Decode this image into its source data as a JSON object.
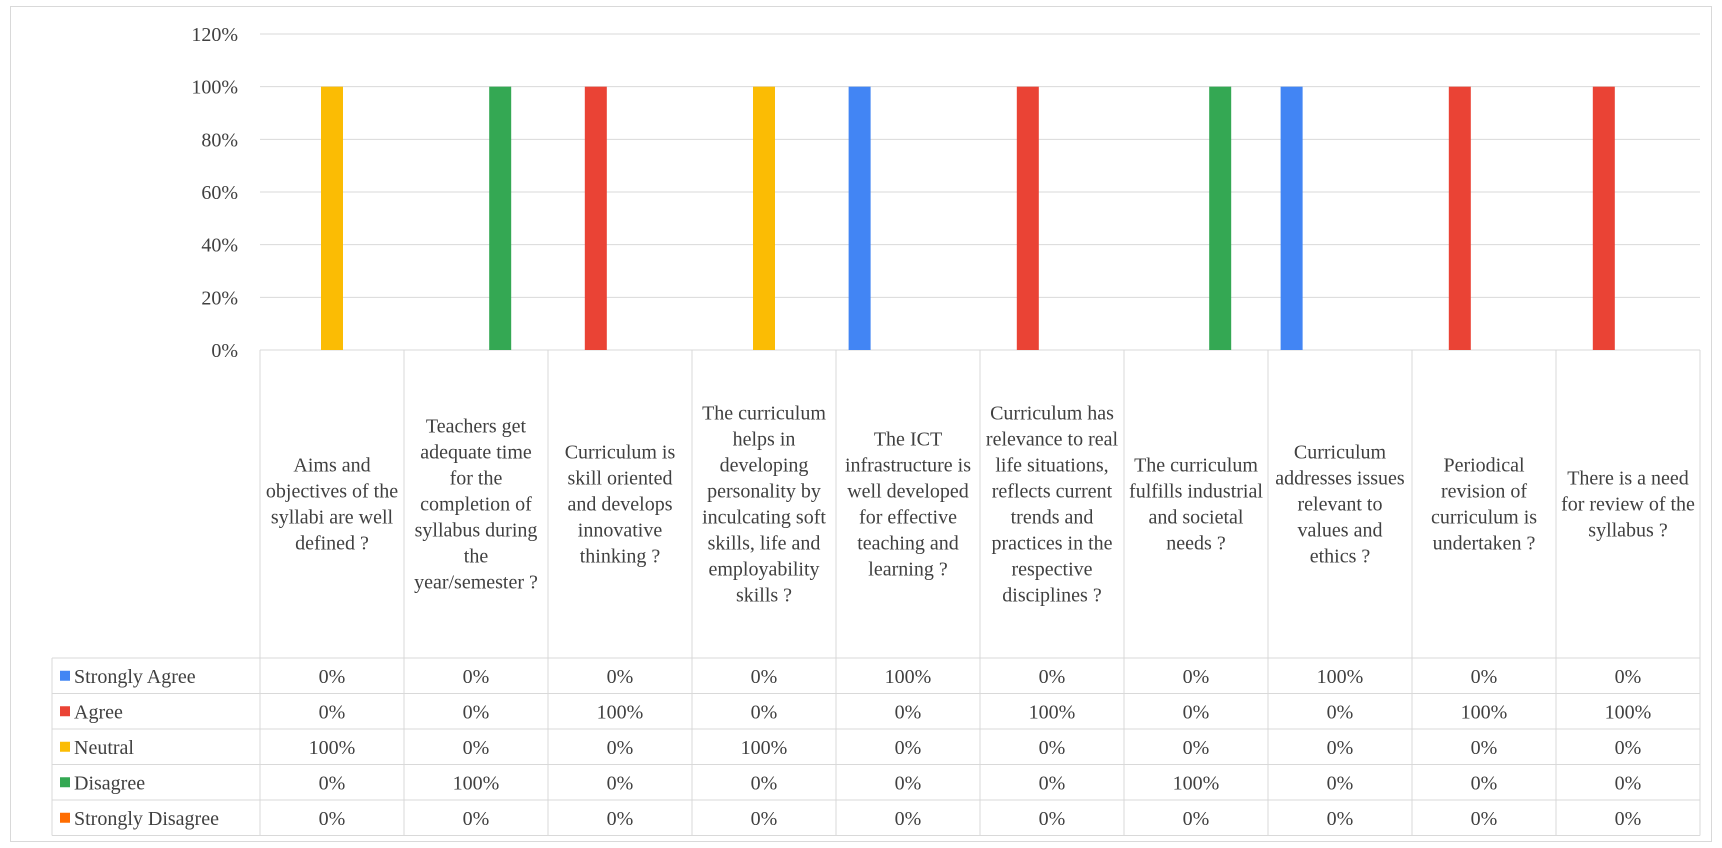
{
  "chart_data": {
    "type": "bar",
    "title": "",
    "xlabel": "",
    "ylabel": "",
    "ylim": [
      0,
      120
    ],
    "y_ticks": [
      "0%",
      "20%",
      "40%",
      "60%",
      "80%",
      "100%",
      "120%"
    ],
    "y_tick_values": [
      0,
      20,
      40,
      60,
      80,
      100,
      120
    ],
    "grid": true,
    "legend": "data-table",
    "categories": [
      "Aims and objectives of the syllabi are well defined ?",
      "Teachers get adequate time for the completion of syllabus during the year/semester ?",
      "Curriculum is skill oriented and develops innovative thinking ?",
      "The curriculum helps in developing personality by inculcating soft skills, life and employability skills ?",
      "The ICT infrastructure is well developed for effective teaching and learning ?",
      "Curriculum has relevance to real life situations, reflects current trends and practices in the respective disciplines ?",
      "The curriculum fulfills industrial and societal needs ?",
      "Curriculum addresses issues relevant to values and ethics ?",
      "Periodical revision of curriculum is undertaken ?",
      "There is a need for review of the syllabus ?"
    ],
    "series": [
      {
        "name": "Strongly Agree",
        "color": "#4285f4",
        "values": [
          0,
          0,
          0,
          0,
          100,
          0,
          0,
          100,
          0,
          0
        ],
        "labels": [
          "0%",
          "0%",
          "0%",
          "0%",
          "100%",
          "0%",
          "0%",
          "100%",
          "0%",
          "0%"
        ]
      },
      {
        "name": "Agree",
        "color": "#ea4335",
        "values": [
          0,
          0,
          100,
          0,
          0,
          100,
          0,
          0,
          100,
          100
        ],
        "labels": [
          "0%",
          "0%",
          "100%",
          "0%",
          "0%",
          "100%",
          "0%",
          "0%",
          "100%",
          "100%"
        ]
      },
      {
        "name": "Neutral",
        "color": "#fbbc04",
        "values": [
          100,
          0,
          0,
          100,
          0,
          0,
          0,
          0,
          0,
          0
        ],
        "labels": [
          "100%",
          "0%",
          "0%",
          "100%",
          "0%",
          "0%",
          "0%",
          "0%",
          "0%",
          "0%"
        ]
      },
      {
        "name": "Disagree",
        "color": "#34a853",
        "values": [
          0,
          100,
          0,
          0,
          0,
          0,
          100,
          0,
          0,
          0
        ],
        "labels": [
          "0%",
          "100%",
          "0%",
          "0%",
          "0%",
          "0%",
          "100%",
          "0%",
          "0%",
          "0%"
        ]
      },
      {
        "name": "Strongly Disagree",
        "color": "#ff6d01",
        "values": [
          0,
          0,
          0,
          0,
          0,
          0,
          0,
          0,
          0,
          0
        ],
        "labels": [
          "0%",
          "0%",
          "0%",
          "0%",
          "0%",
          "0%",
          "0%",
          "0%",
          "0%",
          "0%"
        ]
      }
    ]
  }
}
